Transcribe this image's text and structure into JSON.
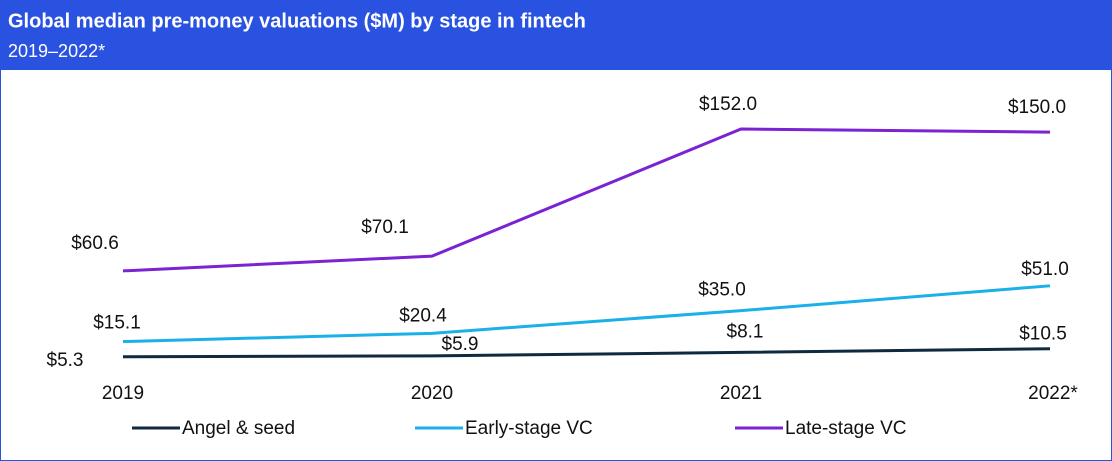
{
  "chart_data": {
    "type": "line",
    "title": "Global median pre-money valuations ($M) by stage in fintech",
    "subtitle": "2019–2022*",
    "categories": [
      "2019",
      "2020",
      "2021",
      "2022*"
    ],
    "series": [
      {
        "name": "Angel & seed",
        "color": "#0f2a3f",
        "values": [
          5.3,
          5.9,
          8.1,
          10.5
        ],
        "value_labels": [
          "$5.3",
          "$5.9",
          "$8.1",
          "$10.5"
        ]
      },
      {
        "name": "Early-stage VC",
        "color": "#1ab0e8",
        "values": [
          15.1,
          20.4,
          35.0,
          51.0
        ],
        "value_labels": [
          "$15.1",
          "$20.4",
          "$35.0",
          "$51.0"
        ]
      },
      {
        "name": "Late-stage VC",
        "color": "#7b22d4",
        "values": [
          60.6,
          70.1,
          152.0,
          150.0
        ],
        "value_labels": [
          "$60.6",
          "$70.1",
          "$152.0",
          "$150.0"
        ]
      }
    ]
  }
}
